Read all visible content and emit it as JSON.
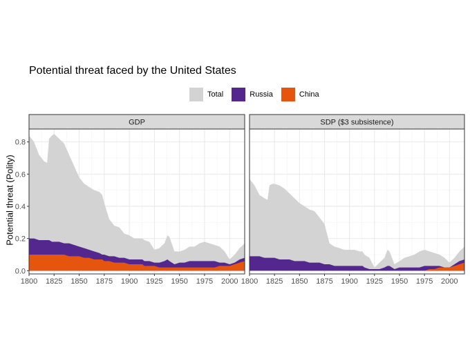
{
  "chart_data": {
    "type": "area",
    "title": "Potential threat faced by the United States",
    "ylabel": "Potential threat (Polity)",
    "xlabel": "",
    "xlim": [
      1800,
      2015
    ],
    "ylim": [
      -0.02,
      0.88
    ],
    "x_ticks": [
      1800,
      1825,
      1850,
      1875,
      1900,
      1925,
      1950,
      1975,
      2000
    ],
    "y_ticks": [
      0.0,
      0.2,
      0.4,
      0.6,
      0.8
    ],
    "y_tick_labels": [
      "0.0",
      "0.2",
      "0.4",
      "0.6",
      "0.8"
    ],
    "grid": true,
    "legend": {
      "position": "top",
      "entries": [
        {
          "name": "Total",
          "color": "#d3d3d3"
        },
        {
          "name": "Russia",
          "color": "#54278f"
        },
        {
          "name": "China",
          "color": "#e6550d"
        }
      ]
    },
    "panels": [
      {
        "strip": "GDP",
        "x": [
          1800,
          1805,
          1810,
          1815,
          1818,
          1820,
          1823,
          1825,
          1830,
          1835,
          1840,
          1845,
          1850,
          1855,
          1860,
          1865,
          1870,
          1873,
          1875,
          1880,
          1885,
          1890,
          1895,
          1900,
          1905,
          1910,
          1913,
          1915,
          1920,
          1925,
          1930,
          1935,
          1938,
          1940,
          1945,
          1950,
          1955,
          1960,
          1965,
          1970,
          1975,
          1980,
          1985,
          1990,
          1995,
          2000,
          2005,
          2010,
          2015
        ],
        "series": [
          {
            "name": "Total",
            "values": [
              0.84,
              0.8,
              0.72,
              0.68,
              0.67,
              0.82,
              0.84,
              0.85,
              0.82,
              0.79,
              0.72,
              0.65,
              0.58,
              0.54,
              0.52,
              0.5,
              0.49,
              0.47,
              0.42,
              0.32,
              0.28,
              0.27,
              0.23,
              0.22,
              0.2,
              0.2,
              0.2,
              0.19,
              0.18,
              0.13,
              0.14,
              0.17,
              0.22,
              0.21,
              0.12,
              0.12,
              0.13,
              0.15,
              0.15,
              0.17,
              0.18,
              0.17,
              0.16,
              0.15,
              0.12,
              0.07,
              0.1,
              0.14,
              0.17
            ]
          },
          {
            "name": "Russia",
            "values": [
              0.2,
              0.2,
              0.19,
              0.19,
              0.19,
              0.19,
              0.18,
              0.18,
              0.18,
              0.17,
              0.17,
              0.16,
              0.15,
              0.14,
              0.13,
              0.12,
              0.11,
              0.1,
              0.1,
              0.09,
              0.09,
              0.08,
              0.08,
              0.07,
              0.07,
              0.07,
              0.07,
              0.06,
              0.06,
              0.05,
              0.05,
              0.06,
              0.07,
              0.06,
              0.04,
              0.05,
              0.05,
              0.06,
              0.06,
              0.06,
              0.06,
              0.06,
              0.06,
              0.05,
              0.05,
              0.04,
              0.05,
              0.07,
              0.08
            ]
          },
          {
            "name": "China",
            "values": [
              0.1,
              0.1,
              0.1,
              0.1,
              0.1,
              0.1,
              0.1,
              0.1,
              0.1,
              0.1,
              0.09,
              0.09,
              0.09,
              0.08,
              0.08,
              0.07,
              0.07,
              0.07,
              0.06,
              0.06,
              0.05,
              0.05,
              0.05,
              0.04,
              0.04,
              0.04,
              0.04,
              0.03,
              0.03,
              0.03,
              0.02,
              0.02,
              0.02,
              0.02,
              0.02,
              0.02,
              0.02,
              0.02,
              0.02,
              0.02,
              0.02,
              0.02,
              0.02,
              0.03,
              0.03,
              0.03,
              0.04,
              0.05,
              0.06
            ]
          }
        ]
      },
      {
        "strip": "SDP ($3 subsistence)",
        "x": [
          1800,
          1805,
          1810,
          1815,
          1818,
          1820,
          1823,
          1825,
          1830,
          1835,
          1840,
          1845,
          1850,
          1855,
          1860,
          1865,
          1870,
          1875,
          1880,
          1885,
          1890,
          1895,
          1900,
          1905,
          1910,
          1913,
          1915,
          1920,
          1925,
          1930,
          1935,
          1938,
          1940,
          1945,
          1950,
          1955,
          1960,
          1965,
          1970,
          1975,
          1980,
          1985,
          1990,
          1995,
          2000,
          2005,
          2010,
          2015
        ],
        "series": [
          {
            "name": "Total",
            "values": [
              0.57,
              0.53,
              0.47,
              0.45,
              0.44,
              0.53,
              0.54,
              0.54,
              0.53,
              0.51,
              0.48,
              0.45,
              0.42,
              0.4,
              0.38,
              0.37,
              0.33,
              0.29,
              0.17,
              0.15,
              0.14,
              0.13,
              0.13,
              0.13,
              0.12,
              0.12,
              0.1,
              0.08,
              0.02,
              0.05,
              0.08,
              0.13,
              0.12,
              0.04,
              0.06,
              0.08,
              0.09,
              0.1,
              0.12,
              0.13,
              0.12,
              0.11,
              0.1,
              0.08,
              0.05,
              0.08,
              0.12,
              0.15
            ]
          },
          {
            "name": "Russia",
            "values": [
              0.09,
              0.09,
              0.09,
              0.08,
              0.08,
              0.08,
              0.08,
              0.08,
              0.07,
              0.07,
              0.07,
              0.06,
              0.06,
              0.06,
              0.05,
              0.05,
              0.05,
              0.04,
              0.04,
              0.03,
              0.03,
              0.03,
              0.03,
              0.03,
              0.03,
              0.03,
              0.02,
              0.01,
              0.01,
              0.01,
              0.02,
              0.03,
              0.03,
              0.01,
              0.02,
              0.02,
              0.02,
              0.02,
              0.02,
              0.03,
              0.03,
              0.03,
              0.03,
              0.02,
              0.02,
              0.04,
              0.06,
              0.07
            ]
          },
          {
            "name": "China",
            "values": [
              0.0,
              0.0,
              0.0,
              0.0,
              0.0,
              0.0,
              0.0,
              0.0,
              0.0,
              0.0,
              0.0,
              0.0,
              0.0,
              0.0,
              0.0,
              0.0,
              0.0,
              0.0,
              0.0,
              0.0,
              0.0,
              0.0,
              0.0,
              0.0,
              0.0,
              0.0,
              0.0,
              0.0,
              0.0,
              0.0,
              0.0,
              0.0,
              0.0,
              0.0,
              0.0,
              0.0,
              0.0,
              0.0,
              0.0,
              0.0,
              0.01,
              0.01,
              0.02,
              0.02,
              0.02,
              0.03,
              0.04,
              0.05
            ]
          }
        ]
      }
    ]
  }
}
